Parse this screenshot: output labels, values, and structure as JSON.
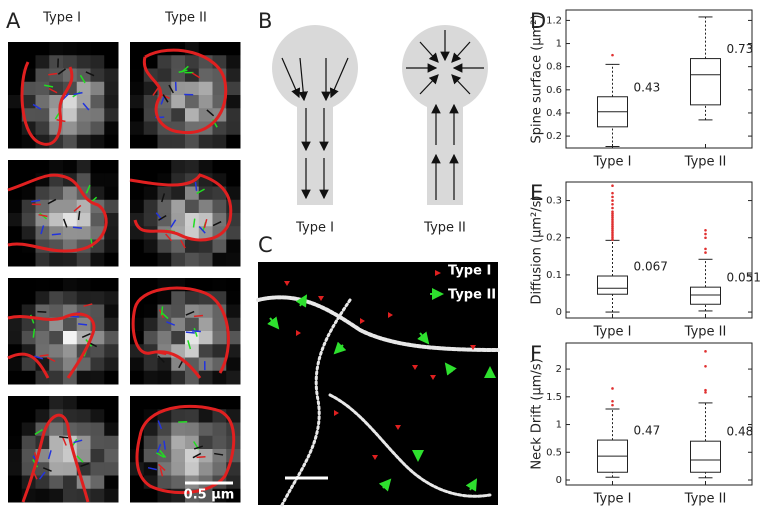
{
  "panel_a": {
    "letter": "A",
    "columns": [
      "Type I",
      "Type II"
    ],
    "scale_bar": "0.5 µm"
  },
  "panel_b": {
    "letter": "B",
    "labels": [
      "Type I",
      "Type II"
    ]
  },
  "panel_c": {
    "letter": "C",
    "legend": [
      "Type I",
      "Type II"
    ]
  },
  "chart_data": [
    {
      "type": "box",
      "letter": "D",
      "ylabel": "Spine surface (µm²)",
      "categories": [
        "Type I",
        "Type II"
      ],
      "ylim": [
        0.097,
        1.29
      ],
      "yticks": [
        0.2,
        0.4,
        0.6,
        0.8,
        1,
        1.2
      ],
      "boxes": [
        {
          "whislo": 0.11,
          "q1": 0.28,
          "med": 0.41,
          "q3": 0.54,
          "whishi": 0.82,
          "fliers": [
            0.9
          ]
        },
        {
          "whislo": 0.34,
          "q1": 0.47,
          "med": 0.73,
          "q3": 0.87,
          "whishi": 1.23,
          "fliers": []
        }
      ],
      "annotations": [
        0.43,
        0.73
      ],
      "color": "#222222",
      "flier_color": "#e03030"
    },
    {
      "type": "box",
      "letter": "E",
      "ylabel": "Diffusion (µm²/s)",
      "categories": [
        "Type I",
        "Type II"
      ],
      "ylim": [
        -0.016,
        0.35
      ],
      "yticks": [
        0,
        0.1,
        0.2,
        0.3
      ],
      "boxes": [
        {
          "whislo": 0.0,
          "q1": 0.048,
          "med": 0.064,
          "q3": 0.097,
          "whishi": 0.193,
          "fliers": [
            0.195,
            0.2,
            0.205,
            0.21,
            0.215,
            0.22,
            0.225,
            0.23,
            0.235,
            0.24,
            0.245,
            0.25,
            0.255,
            0.26,
            0.265,
            0.27,
            0.28,
            0.29,
            0.3,
            0.31,
            0.32,
            0.34
          ]
        },
        {
          "whislo": 0.003,
          "q1": 0.021,
          "med": 0.046,
          "q3": 0.067,
          "whishi": 0.142,
          "fliers": [
            0.16,
            0.17,
            0.2,
            0.21,
            0.22
          ]
        }
      ],
      "annotations": [
        0.067,
        0.051
      ],
      "color": "#222222",
      "flier_color": "#e03030"
    },
    {
      "type": "box",
      "letter": "F",
      "ylabel": "Neck Drift (µm/s)",
      "categories": [
        "Type I",
        "Type II"
      ],
      "ylim": [
        -0.09,
        2.47
      ],
      "yticks": [
        0,
        0.5,
        1,
        1.5,
        2
      ],
      "boxes": [
        {
          "whislo": 0.05,
          "q1": 0.14,
          "med": 0.43,
          "q3": 0.72,
          "whishi": 1.28,
          "fliers": [
            1.35,
            1.42,
            1.65
          ]
        },
        {
          "whislo": 0.04,
          "q1": 0.14,
          "med": 0.36,
          "q3": 0.7,
          "whishi": 1.39,
          "fliers": [
            1.58,
            1.62,
            2.05,
            2.32
          ]
        }
      ],
      "annotations": [
        0.47,
        0.48
      ],
      "color": "#222222",
      "flier_color": "#e03030"
    }
  ]
}
